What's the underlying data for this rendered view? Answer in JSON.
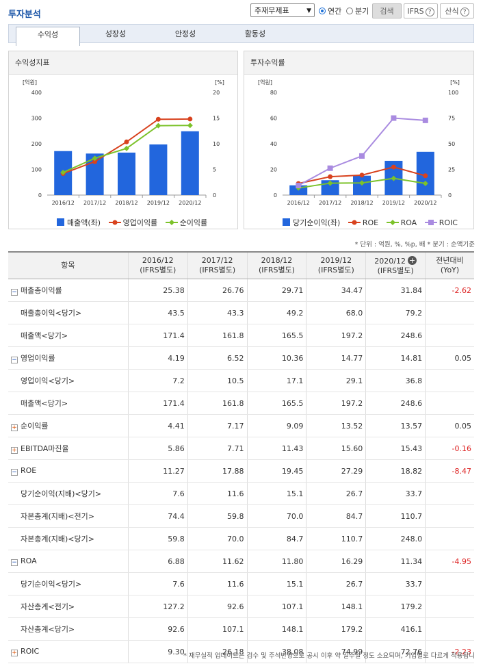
{
  "header": {
    "title": "투자분석",
    "report_select": "주재무제표",
    "radio_annual": "연간",
    "radio_quarter": "분기",
    "search_btn": "검색",
    "ifrs_btn": "IFRS",
    "formula_btn": "산식",
    "help_glyph": "?"
  },
  "tabs": [
    "수익성",
    "성장성",
    "안정성",
    "활동성"
  ],
  "panels": {
    "left_title": "수익성지표",
    "right_title": "투자수익률"
  },
  "chart_data": [
    {
      "type": "bar",
      "title": "수익성지표",
      "categories": [
        "2016/12",
        "2017/12",
        "2018/12",
        "2019/12",
        "2020/12"
      ],
      "left_unit": "[억원]",
      "right_unit": "[%]",
      "y_left_ticks": [
        0,
        100,
        200,
        300,
        400
      ],
      "y_right_ticks": [
        0,
        5,
        10,
        15,
        20
      ],
      "ylim_left": [
        0,
        400
      ],
      "ylim_right": [
        0,
        20
      ],
      "bars": {
        "name": "매출액(좌)",
        "values": [
          171.4,
          161.8,
          165.5,
          197.2,
          248.6
        ],
        "color": "#2266dd"
      },
      "lines": [
        {
          "name": "영업이익률",
          "values": [
            4.19,
            6.52,
            10.36,
            14.77,
            14.81
          ],
          "color": "#d8421e"
        },
        {
          "name": "순이익률",
          "values": [
            4.41,
            7.17,
            9.09,
            13.52,
            13.57
          ],
          "color": "#7cc22a"
        }
      ]
    },
    {
      "type": "bar",
      "title": "투자수익률",
      "categories": [
        "2016/12",
        "2017/12",
        "2018/12",
        "2019/12",
        "2020/12"
      ],
      "left_unit": "[억원]",
      "right_unit": "[%]",
      "y_left_ticks": [
        0,
        20,
        40,
        60,
        80
      ],
      "y_right_ticks": [
        0,
        25,
        50,
        75,
        100
      ],
      "ylim_left": [
        0,
        80
      ],
      "ylim_right": [
        0,
        100
      ],
      "bars": {
        "name": "당기순이익(좌)",
        "values": [
          7.6,
          11.6,
          15.1,
          26.7,
          33.7
        ],
        "color": "#2266dd"
      },
      "lines": [
        {
          "name": "ROE",
          "values": [
            11.27,
            17.88,
            19.45,
            27.29,
            18.82
          ],
          "color": "#d8421e"
        },
        {
          "name": "ROA",
          "values": [
            6.88,
            11.62,
            11.8,
            16.29,
            11.34
          ],
          "color": "#7cc22a"
        },
        {
          "name": "ROIC",
          "values": [
            9.3,
            26.18,
            38.08,
            74.99,
            72.76
          ],
          "color": "#a98be0"
        }
      ]
    }
  ],
  "notes": {
    "unit": "* 단위 : 억원, %, %p, 배   * 분기 : 순액기준",
    "footer": "* 재무실적 업데이트는 검수 및 주석반영으로 공시 이후 약 일주일 정도 소요되며, 기업별로 다르게 적용됩니"
  },
  "table": {
    "headers": [
      "항목",
      "2016/12\n(IFRS별도)",
      "2017/12\n(IFRS별도)",
      "2018/12\n(IFRS별도)",
      "2019/12\n(IFRS별도)",
      "2020/12\n(IFRS별도)",
      "전년대비\n(YoY)"
    ],
    "rows": [
      {
        "label": "매출총이익률",
        "type": "minus",
        "values": [
          "25.38",
          "26.76",
          "29.71",
          "34.47",
          "31.84",
          "-2.62"
        ]
      },
      {
        "label": "매출총이익<당기>",
        "type": "sub",
        "values": [
          "43.5",
          "43.3",
          "49.2",
          "68.0",
          "79.2",
          ""
        ]
      },
      {
        "label": "매출액<당기>",
        "type": "sub",
        "values": [
          "171.4",
          "161.8",
          "165.5",
          "197.2",
          "248.6",
          ""
        ]
      },
      {
        "label": "영업이익률",
        "type": "minus",
        "values": [
          "4.19",
          "6.52",
          "10.36",
          "14.77",
          "14.81",
          "0.05"
        ]
      },
      {
        "label": "영업이익<당기>",
        "type": "sub",
        "values": [
          "7.2",
          "10.5",
          "17.1",
          "29.1",
          "36.8",
          ""
        ]
      },
      {
        "label": "매출액<당기>",
        "type": "sub",
        "values": [
          "171.4",
          "161.8",
          "165.5",
          "197.2",
          "248.6",
          ""
        ]
      },
      {
        "label": "순이익률",
        "type": "plus",
        "values": [
          "4.41",
          "7.17",
          "9.09",
          "13.52",
          "13.57",
          "0.05"
        ]
      },
      {
        "label": "EBITDA마진율",
        "type": "plus",
        "values": [
          "5.86",
          "7.71",
          "11.43",
          "15.60",
          "15.43",
          "-0.16"
        ]
      },
      {
        "label": "ROE",
        "type": "minus",
        "values": [
          "11.27",
          "17.88",
          "19.45",
          "27.29",
          "18.82",
          "-8.47"
        ]
      },
      {
        "label": "당기순이익(지배)<당기>",
        "type": "sub",
        "values": [
          "7.6",
          "11.6",
          "15.1",
          "26.7",
          "33.7",
          ""
        ]
      },
      {
        "label": "자본총계(지배)<전기>",
        "type": "sub",
        "values": [
          "74.4",
          "59.8",
          "70.0",
          "84.7",
          "110.7",
          ""
        ]
      },
      {
        "label": "자본총계(지배)<당기>",
        "type": "sub",
        "values": [
          "59.8",
          "70.0",
          "84.7",
          "110.7",
          "248.0",
          ""
        ]
      },
      {
        "label": "ROA",
        "type": "minus",
        "values": [
          "6.88",
          "11.62",
          "11.80",
          "16.29",
          "11.34",
          "-4.95"
        ]
      },
      {
        "label": "당기순이익<당기>",
        "type": "sub",
        "values": [
          "7.6",
          "11.6",
          "15.1",
          "26.7",
          "33.7",
          ""
        ]
      },
      {
        "label": "자산총계<전기>",
        "type": "sub",
        "values": [
          "127.2",
          "92.6",
          "107.1",
          "148.1",
          "179.2",
          ""
        ]
      },
      {
        "label": "자산총계<당기>",
        "type": "sub",
        "values": [
          "92.6",
          "107.1",
          "148.1",
          "179.2",
          "416.1",
          ""
        ]
      },
      {
        "label": "ROIC",
        "type": "plus",
        "values": [
          "9.30",
          "26.18",
          "38.08",
          "74.99",
          "72.76",
          "-2.23"
        ]
      }
    ]
  }
}
